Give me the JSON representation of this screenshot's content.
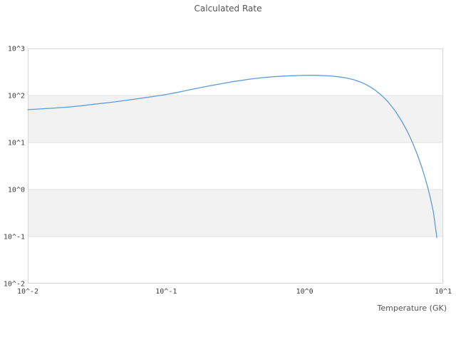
{
  "title": "Calculated Rate",
  "axes": {
    "x": {
      "label": "Temperature (GK)",
      "ticks": [
        "10^-2",
        "10^-1",
        "10^0",
        "10^1"
      ],
      "tick_exps": [
        -2,
        -1,
        0,
        1
      ]
    },
    "y": {
      "label": "",
      "ticks": [
        "10^3",
        "10^2",
        "10^1",
        "10^0",
        "10^-1",
        "10^-2"
      ],
      "tick_exps": [
        3,
        2,
        1,
        0,
        -1,
        -2
      ]
    }
  },
  "colors": {
    "line": "#5b9cd9",
    "band": "#f2f2f2",
    "grid": "#e3e3e3",
    "frame": "#d7d7d7",
    "tick_text": "#3d3d3d",
    "title_text": "#555555",
    "background": "#ffffff"
  },
  "chart_data": {
    "type": "line",
    "title": "Calculated Rate",
    "xlabel": "Temperature (GK)",
    "ylabel": "",
    "x_scale": "log",
    "y_scale": "log",
    "xlim": [
      0.01,
      10
    ],
    "ylim": [
      0.01,
      1000
    ],
    "grid": "horizontal-decades",
    "legend": false,
    "shaded_bands_y": [
      [
        10,
        100
      ],
      [
        0.1,
        1
      ]
    ],
    "x": [
      0.01,
      0.012,
      0.015,
      0.02,
      0.025,
      0.03,
      0.04,
      0.05,
      0.06,
      0.07,
      0.08,
      0.1,
      0.12,
      0.15,
      0.2,
      0.25,
      0.3,
      0.4,
      0.5,
      0.6,
      0.7,
      0.8,
      0.9,
      1.0,
      1.2,
      1.5,
      1.75,
      2.0,
      2.25,
      2.5,
      2.75,
      3.0,
      3.25,
      3.5,
      3.75,
      4.0,
      4.5,
      5.0,
      5.5,
      6.0,
      6.5,
      7.0,
      7.5,
      8.0,
      8.5,
      9.0
    ],
    "y": [
      50,
      51.5,
      53.5,
      57,
      61,
      65,
      71.5,
      78,
      84,
      89.5,
      95,
      105,
      116,
      133,
      158,
      178,
      196,
      222,
      240,
      251,
      258,
      263,
      266,
      268,
      268,
      261,
      250,
      235,
      217,
      196,
      173,
      150,
      128,
      107,
      89,
      73,
      47,
      29,
      17.5,
      10,
      5.6,
      3.0,
      1.55,
      0.75,
      0.33,
      0.095
    ]
  }
}
